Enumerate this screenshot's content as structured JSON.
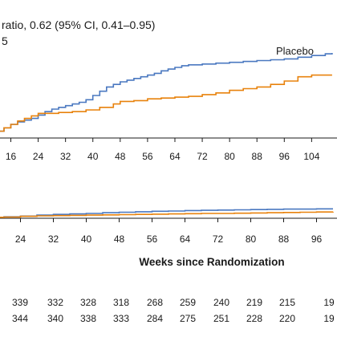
{
  "colors": {
    "treatment": "#e8820c",
    "placebo": "#4a78c0",
    "axis": "#1a1a1a"
  },
  "header_lines": [
    "ratio, 0.62 (95% CI, 0.41–0.95)",
    "5"
  ],
  "chart_data": [
    {
      "type": "line",
      "title": "",
      "xlabel": "",
      "ylabel": "",
      "xlim": [
        10,
        110
      ],
      "ylim": [
        0,
        100
      ],
      "x_ticks": [
        16,
        24,
        32,
        40,
        48,
        56,
        64,
        72,
        80,
        88,
        96,
        104
      ],
      "x_tick_labels": [
        "16",
        "24",
        "32",
        "40",
        "48",
        "56",
        "64",
        "72",
        "80",
        "88",
        "96",
        "104"
      ],
      "annotations": [
        {
          "text": "Placebo",
          "series": "placebo"
        }
      ],
      "series": [
        {
          "key": "placebo",
          "color": "#4a78c0",
          "x": [
            10,
            12,
            14,
            16,
            18,
            20,
            22,
            24,
            26,
            28,
            30,
            32,
            34,
            36,
            38,
            40,
            42,
            44,
            46,
            48,
            50,
            52,
            54,
            56,
            58,
            60,
            62,
            64,
            66,
            68,
            72,
            76,
            80,
            84,
            88,
            92,
            96,
            100,
            104,
            108,
            110
          ],
          "y": [
            5,
            8,
            12,
            16,
            19,
            21,
            23,
            27,
            31,
            34,
            36,
            38,
            40,
            42,
            45,
            50,
            55,
            60,
            63,
            66,
            68,
            70,
            72,
            74,
            76,
            79,
            81,
            83,
            85,
            86,
            87,
            88,
            89,
            90,
            91,
            92,
            93,
            95,
            97,
            99,
            100
          ]
        },
        {
          "key": "treatment",
          "color": "#e8820c",
          "x": [
            10,
            12,
            14,
            16,
            18,
            20,
            22,
            24,
            26,
            30,
            34,
            38,
            42,
            46,
            48,
            52,
            56,
            60,
            64,
            68,
            72,
            76,
            80,
            84,
            88,
            92,
            96,
            100,
            104,
            110
          ],
          "y": [
            5,
            8,
            12,
            16,
            20,
            23,
            26,
            29,
            29,
            30,
            31,
            33,
            36,
            40,
            43,
            44,
            46,
            47,
            48,
            49,
            51,
            53,
            56,
            58,
            60,
            63,
            67,
            72,
            74,
            74
          ]
        }
      ]
    },
    {
      "type": "line",
      "title": "",
      "xlabel": "Weeks since Randomization",
      "ylabel": "",
      "xlim": [
        16,
        100
      ],
      "ylim": [
        0,
        10
      ],
      "x_ticks": [
        24,
        32,
        40,
        48,
        56,
        64,
        72,
        80,
        88,
        96
      ],
      "x_tick_labels": [
        "24",
        "32",
        "40",
        "48",
        "56",
        "64",
        "72",
        "80",
        "88",
        "96"
      ],
      "series": [
        {
          "key": "placebo",
          "color": "#4a78c0",
          "x": [
            16,
            20,
            24,
            28,
            32,
            36,
            40,
            44,
            48,
            52,
            56,
            60,
            64,
            68,
            72,
            76,
            80,
            84,
            88,
            92,
            96,
            100
          ],
          "y": [
            0.4,
            0.6,
            0.9,
            1.3,
            1.6,
            1.8,
            2.0,
            2.3,
            2.5,
            2.7,
            2.9,
            3.0,
            3.2,
            3.3,
            3.4,
            3.5,
            3.6,
            3.7,
            3.8,
            3.8,
            3.9,
            3.9
          ]
        },
        {
          "key": "treatment",
          "color": "#e8820c",
          "x": [
            16,
            20,
            24,
            28,
            32,
            36,
            40,
            44,
            48,
            52,
            56,
            60,
            64,
            68,
            72,
            76,
            80,
            84,
            88,
            92,
            96,
            100
          ],
          "y": [
            0.4,
            0.5,
            0.8,
            1.0,
            1.1,
            1.2,
            1.3,
            1.4,
            1.5,
            1.6,
            1.7,
            1.8,
            1.9,
            2.0,
            2.0,
            2.1,
            2.2,
            2.3,
            2.4,
            2.5,
            2.6,
            2.7
          ]
        }
      ]
    },
    {
      "type": "table",
      "name": "number-at-risk",
      "rows": [
        [
          "339",
          "332",
          "328",
          "318",
          "268",
          "259",
          "240",
          "219",
          "215",
          "19"
        ],
        [
          "344",
          "340",
          "338",
          "333",
          "284",
          "275",
          "251",
          "228",
          "220",
          "19"
        ]
      ]
    }
  ]
}
